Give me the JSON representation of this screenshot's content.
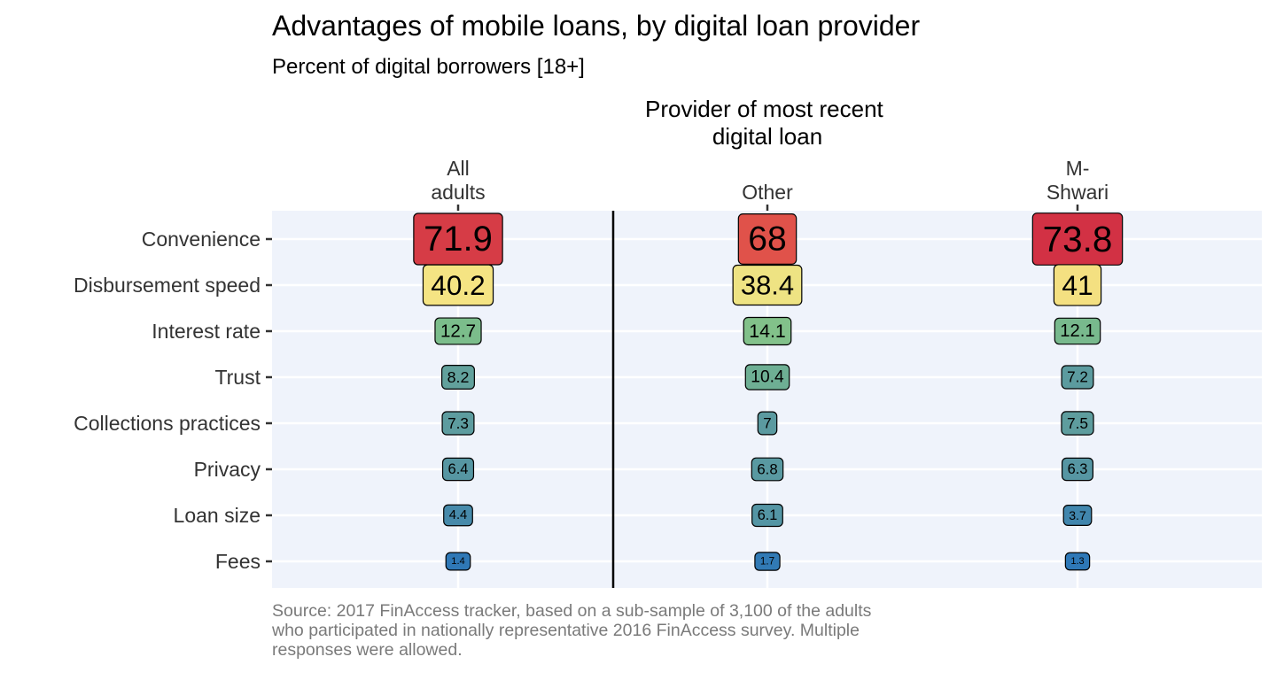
{
  "chart_data": {
    "type": "heatmap",
    "title": "Advantages of mobile loans, by digital loan provider",
    "subtitle": "Percent of digital borrowers [18+]",
    "group_title": [
      "Provider of most recent",
      "digital loan"
    ],
    "columns": [
      {
        "label_lines": [
          "All",
          "adults"
        ]
      },
      {
        "label_lines": [
          "Other"
        ]
      },
      {
        "label_lines": [
          "M-",
          "Shwari"
        ]
      }
    ],
    "rows": [
      "Convenience",
      "Disbursement speed",
      "Interest rate",
      "Trust",
      "Collections practices",
      "Privacy",
      "Loan size",
      "Fees"
    ],
    "values": [
      [
        71.9,
        68,
        73.8
      ],
      [
        40.2,
        38.4,
        41
      ],
      [
        12.7,
        14.1,
        12.1
      ],
      [
        8.2,
        10.4,
        7.2
      ],
      [
        7.3,
        7,
        7.5
      ],
      [
        6.4,
        6.8,
        6.3
      ],
      [
        4.4,
        6.1,
        3.7
      ],
      [
        1.4,
        1.7,
        1.3
      ]
    ],
    "value_labels": [
      [
        "71.9",
        "68",
        "73.8"
      ],
      [
        "40.2",
        "38.4",
        "41"
      ],
      [
        "12.7",
        "14.1",
        "12.1"
      ],
      [
        "8.2",
        "10.4",
        "7.2"
      ],
      [
        "7.3",
        "7",
        "7.5"
      ],
      [
        "6.4",
        "6.8",
        "6.3"
      ],
      [
        "4.4",
        "6.1",
        "3.7"
      ],
      [
        "1.4",
        "1.7",
        "1.3"
      ]
    ],
    "color_scale": {
      "stops": [
        {
          "value": 1,
          "color": "#2c76b8"
        },
        {
          "value": 7,
          "color": "#5b9aa0"
        },
        {
          "value": 13,
          "color": "#7dbf8a"
        },
        {
          "value": 40,
          "color": "#f5e583"
        },
        {
          "value": 68,
          "color": "#e0524a"
        },
        {
          "value": 74,
          "color": "#d13044"
        }
      ]
    },
    "caption_lines": [
      "Source: 2017 FinAccess tracker, based on a sub-sample of 3,100 of the adults",
      "who participated in nationally representative 2016 FinAccess survey. Multiple",
      "responses were allowed."
    ],
    "panel_color": "#eff3fb",
    "divider_after_column": 0
  }
}
